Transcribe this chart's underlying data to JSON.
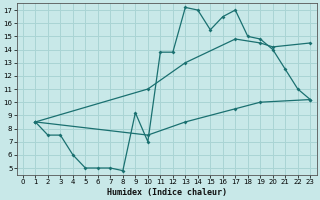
{
  "xlabel": "Humidex (Indice chaleur)",
  "bg_color": "#c8e8e8",
  "grid_color": "#aad4d4",
  "line_color": "#1a7070",
  "xlim": [
    -0.5,
    23.5
  ],
  "ylim": [
    4.5,
    17.5
  ],
  "xticks": [
    0,
    1,
    2,
    3,
    4,
    5,
    6,
    7,
    8,
    9,
    10,
    11,
    12,
    13,
    14,
    15,
    16,
    17,
    18,
    19,
    20,
    21,
    22,
    23
  ],
  "yticks": [
    5,
    6,
    7,
    8,
    9,
    10,
    11,
    12,
    13,
    14,
    15,
    16,
    17
  ],
  "line1_x": [
    1,
    2,
    3,
    4,
    5,
    6,
    7,
    8,
    9,
    10,
    11,
    12,
    13,
    14,
    15,
    16,
    17,
    18,
    19,
    20,
    21,
    22,
    23
  ],
  "line1_y": [
    8.5,
    7.5,
    7.5,
    6.0,
    5.0,
    5.0,
    5.0,
    4.8,
    9.2,
    7.0,
    13.8,
    13.8,
    17.2,
    17.0,
    15.5,
    16.5,
    17.0,
    15.0,
    14.8,
    14.0,
    12.5,
    11.0,
    10.2
  ],
  "line2_x": [
    1,
    10,
    13,
    17,
    19,
    20,
    23
  ],
  "line2_y": [
    8.5,
    11.0,
    13.0,
    14.8,
    14.5,
    14.2,
    14.5
  ],
  "line3_x": [
    1,
    10,
    13,
    17,
    19,
    23
  ],
  "line3_y": [
    8.5,
    7.5,
    8.5,
    9.5,
    10.0,
    10.2
  ]
}
